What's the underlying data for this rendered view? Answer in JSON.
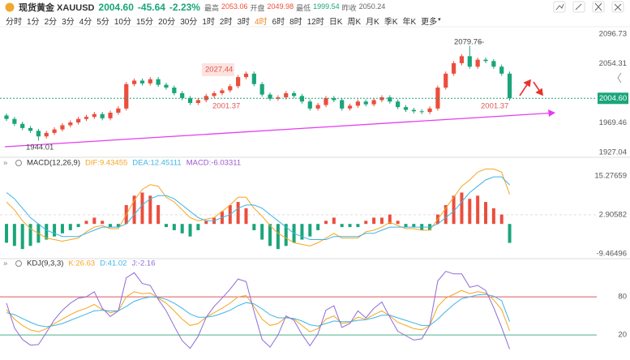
{
  "header": {
    "name": "现货黄金 XAUUSD",
    "price": "2004.60",
    "change": "-45.64",
    "change_pct": "-2.23%",
    "stats": [
      {
        "label": "最高",
        "value": "2053.06"
      },
      {
        "label": "开盘",
        "value": "2049.98"
      },
      {
        "label": "最低",
        "value": "1999.54"
      },
      {
        "label": "昨收",
        "value": "2050.24"
      }
    ]
  },
  "toolbar": {
    "periods": [
      "分时",
      "1分",
      "2分",
      "3分",
      "4分",
      "5分",
      "10分",
      "15分",
      "20分",
      "30分",
      "1时",
      "2时",
      "3时",
      "4时",
      "6时",
      "8时",
      "12时",
      "日K",
      "周K",
      "月K",
      "季K",
      "年K",
      "更多"
    ],
    "selected": "4时"
  },
  "chart_data": [
    {
      "type": "candlestick",
      "up_color": "#eb4e3d",
      "down_color": "#1aa57a",
      "ylim": [
        1921.2,
        2104.9
      ],
      "yticks": [
        1927.04,
        1969.46,
        2054.31,
        2096.73
      ],
      "open": [
        1980,
        1975,
        1968,
        1962,
        1958,
        1950,
        1955,
        1960,
        1966,
        1970,
        1975,
        1978,
        1982,
        1976,
        1984,
        1990,
        2025,
        2030,
        2026,
        2032,
        2024,
        2020,
        2012,
        2005,
        1998,
        2002,
        2008,
        2012,
        2016,
        2022,
        2035,
        2040,
        2025,
        2010,
        2004,
        2006,
        2012,
        2008,
        2000,
        1990,
        1995,
        2005,
        2002,
        1990,
        1994,
        2000,
        1996,
        2002,
        2006,
        2000,
        1992,
        1988,
        1986,
        1985,
        1990,
        2020,
        2040,
        2055,
        2065,
        2050,
        2060,
        2058,
        2050,
        2040
      ],
      "high": [
        1983,
        1978,
        1971,
        1965,
        1961,
        1958,
        1963,
        1969,
        1973,
        1978,
        1981,
        1985,
        1985,
        1987,
        1993,
        2028,
        2033,
        2033,
        2035,
        2035,
        2027,
        2023,
        2015,
        2008,
        2005,
        2011,
        2015,
        2019,
        2025,
        2038,
        2043,
        2043,
        2028,
        2013,
        2009,
        2015,
        2015,
        2011,
        2003,
        1998,
        2008,
        2008,
        2005,
        1997,
        2003,
        2003,
        2005,
        2009,
        2009,
        2003,
        1995,
        1991,
        1989,
        1993,
        2023,
        2043,
        2058,
        2068,
        2079.76,
        2063,
        2063,
        2061,
        2053,
        2043
      ],
      "low": [
        1972,
        1965,
        1959,
        1955,
        1944.01,
        1947,
        1952,
        1957,
        1963,
        1967,
        1972,
        1975,
        1973,
        1973,
        1981,
        1987,
        2022,
        2023,
        2023,
        2021,
        2017,
        2009,
        2002,
        1995,
        1995,
        1999,
        2005,
        2009,
        2013,
        2019,
        2032,
        2022,
        2007,
        2001,
        2001,
        2003,
        2005,
        1997,
        1987,
        1987,
        1992,
        1999,
        1987,
        1987,
        1991,
        1993,
        1993,
        1999,
        1997,
        1989,
        1985,
        1983,
        1982,
        1982,
        1987,
        2017,
        2037,
        2052,
        2047,
        2047,
        2055,
        2047,
        2037,
        2001.37
      ],
      "close": [
        1975,
        1968,
        1962,
        1958,
        1950,
        1955,
        1960,
        1966,
        1970,
        1975,
        1978,
        1982,
        1976,
        1984,
        1990,
        2025,
        2030,
        2026,
        2032,
        2024,
        2020,
        2012,
        2005,
        1998,
        2002,
        2008,
        2012,
        2016,
        2022,
        2035,
        2040,
        2025,
        2010,
        2004,
        2006,
        2012,
        2008,
        2000,
        1990,
        1995,
        2005,
        2002,
        1990,
        1994,
        2000,
        1996,
        2002,
        2006,
        2000,
        1992,
        1988,
        1986,
        1985,
        1990,
        2020,
        2040,
        2055,
        2065,
        2050,
        2060,
        2058,
        2050,
        2040,
        2004.6
      ],
      "annotations": [
        "2079.76",
        "2027.44",
        "2001.37",
        "2001.37",
        "1944.01"
      ]
    },
    {
      "type": "macd",
      "title": "MACD(12,26,9)",
      "up_color": "#eb4e3d",
      "down_color": "#1aa57a",
      "ylim": [
        -10.8,
        18.9
      ],
      "yticks": [
        -9.46496,
        2.90582,
        15.27659
      ],
      "series": [
        {
          "name": "DIF:9.43455",
          "color": "#f5a623",
          "values": [
            7,
            4.5,
            1,
            -1.5,
            -3,
            -4.5,
            -5,
            -5.5,
            -5,
            -4.5,
            -2.5,
            -1,
            -0.5,
            -1.5,
            -1.5,
            3,
            7.5,
            11,
            12.5,
            12,
            8.5,
            7,
            4.5,
            2,
            1,
            1.5,
            2,
            4,
            6,
            8.5,
            8.5,
            5,
            2.5,
            -0.5,
            -3,
            -4.5,
            -6,
            -6.5,
            -7,
            -6,
            -4.5,
            -3,
            -4.5,
            -4.5,
            -4.5,
            -2.5,
            -2,
            -1,
            0.5,
            -0.5,
            -1.5,
            -1.5,
            -2,
            -2,
            1.5,
            5,
            8.5,
            12,
            14,
            16.5,
            17.5,
            17.5,
            16.5,
            9.43455
          ]
        },
        {
          "name": "DEA:12.45111",
          "color": "#3db5e6",
          "values": [
            10,
            8,
            5,
            2,
            0,
            -2,
            -3,
            -4,
            -4,
            -4,
            -3,
            -2,
            -1,
            -1,
            -1,
            0,
            3,
            6,
            8,
            9,
            9,
            8,
            6,
            4,
            2,
            1,
            1,
            2,
            3,
            5,
            6,
            6,
            5,
            3,
            1,
            -1,
            -3,
            -4,
            -5,
            -5,
            -5,
            -4,
            -4,
            -4,
            -4,
            -3,
            -3,
            -2,
            -1,
            -1,
            -1,
            -1,
            -1,
            -1,
            0,
            2,
            4,
            7,
            10,
            12,
            14,
            15,
            15,
            12.45111
          ]
        },
        {
          "name": "MACD:-6.03311",
          "color": "#9b59d0",
          "kind": "histogram",
          "values": [
            -6,
            -7,
            -8,
            -7,
            -6,
            -5,
            -4,
            -3,
            -2,
            -1,
            1,
            2,
            1,
            -1,
            -1,
            6,
            9,
            10,
            9,
            6,
            -1,
            -2,
            -3,
            -4,
            -2,
            1,
            2,
            4,
            6,
            7,
            5,
            -2,
            -5,
            -7,
            -8,
            -7,
            -6,
            -5,
            -4,
            -2,
            1,
            2,
            -1,
            -1,
            -1,
            1,
            2,
            2,
            3,
            1,
            -1,
            -1,
            -2,
            -2,
            3,
            6,
            9,
            10,
            8,
            9,
            7,
            5,
            3,
            -6.03311
          ]
        }
      ]
    },
    {
      "type": "kdj",
      "title": "KDJ(9,3,3)",
      "ylim": [
        -4,
        126
      ],
      "yticks": [
        20,
        80
      ],
      "level_colors": [
        "#4caf8a",
        "#e0575b"
      ],
      "series": [
        {
          "name": "K:26.63",
          "color": "#f5a623",
          "values": [
            60,
            45,
            35,
            28,
            25,
            30,
            38,
            45,
            52,
            58,
            62,
            68,
            60,
            55,
            58,
            80,
            88,
            85,
            86,
            78,
            70,
            58,
            45,
            35,
            38,
            48,
            55,
            62,
            70,
            80,
            82,
            65,
            45,
            35,
            38,
            48,
            45,
            35,
            25,
            30,
            45,
            50,
            38,
            40,
            48,
            45,
            52,
            58,
            50,
            40,
            35,
            30,
            28,
            35,
            65,
            78,
            84,
            90,
            85,
            88,
            86,
            75,
            60,
            26.63
          ]
        },
        {
          "name": "D:41.02",
          "color": "#3db5e6",
          "values": [
            55,
            52,
            46,
            40,
            35,
            33,
            35,
            38,
            43,
            48,
            53,
            58,
            59,
            58,
            58,
            65,
            73,
            77,
            80,
            79,
            76,
            70,
            62,
            53,
            48,
            48,
            50,
            54,
            59,
            66,
            71,
            69,
            61,
            52,
            47,
            47,
            46,
            42,
            36,
            34,
            38,
            42,
            41,
            41,
            43,
            44,
            47,
            51,
            51,
            47,
            43,
            39,
            35,
            35,
            45,
            57,
            68,
            77,
            80,
            83,
            84,
            81,
            74,
            41.02
          ]
        },
        {
          "name": "J:-2.16",
          "color": "#8e6bd8",
          "values": [
            70,
            31,
            13,
            4,
            5,
            24,
            44,
            59,
            70,
            78,
            80,
            88,
            62,
            49,
            58,
            110,
            118,
            101,
            98,
            76,
            58,
            34,
            11,
            -1,
            18,
            48,
            65,
            78,
            92,
            108,
            104,
            57,
            13,
            1,
            20,
            50,
            43,
            21,
            3,
            22,
            59,
            66,
            32,
            38,
            58,
            47,
            62,
            72,
            48,
            26,
            19,
            12,
            14,
            35,
            105,
            120,
            116,
            116,
            95,
            98,
            90,
            63,
            32,
            -2.16
          ]
        }
      ]
    }
  ]
}
